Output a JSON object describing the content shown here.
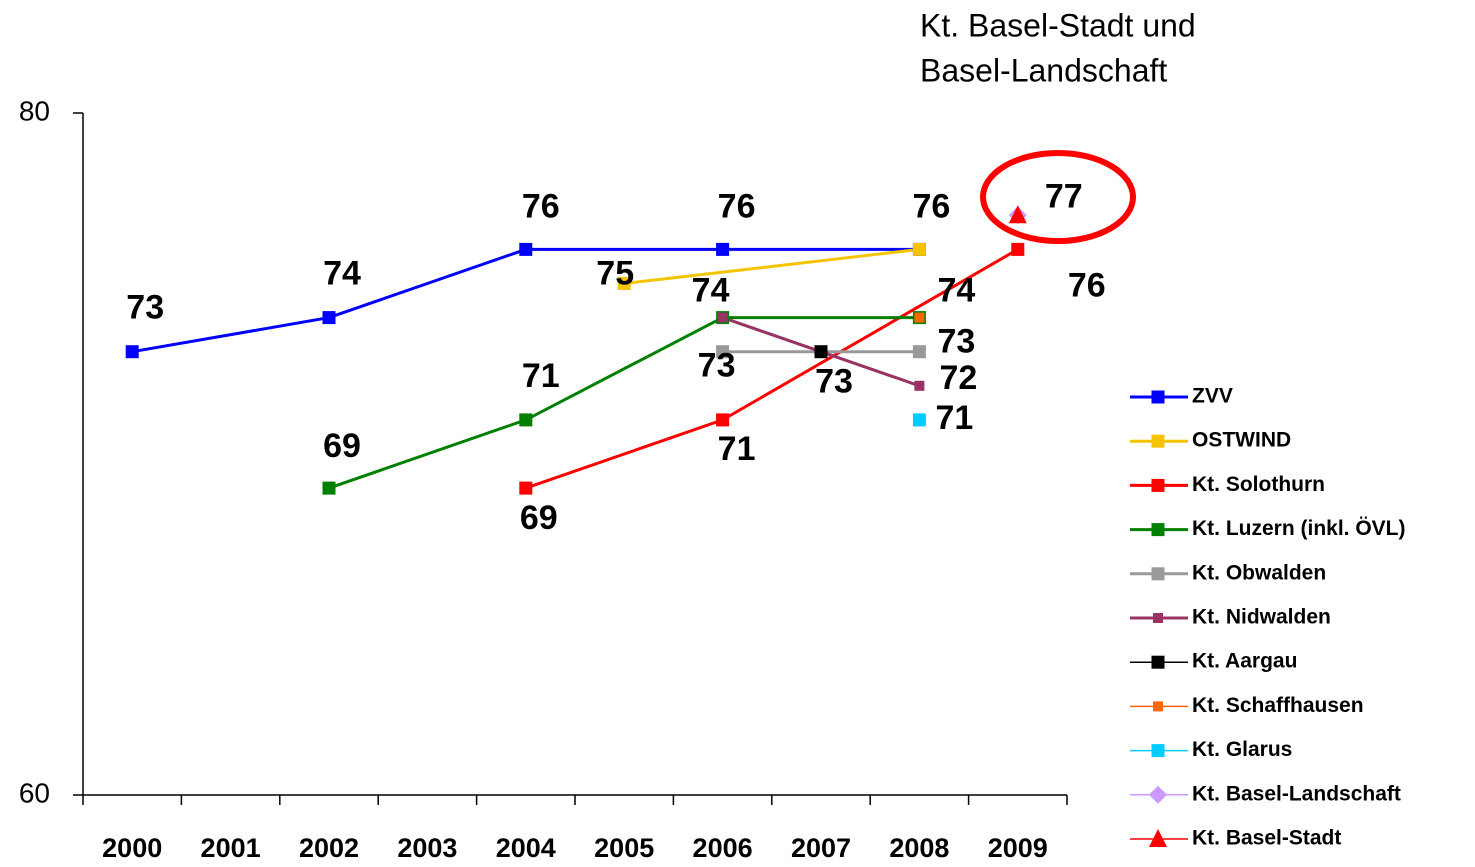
{
  "chart_data": {
    "type": "line",
    "annotation": [
      "Kt. Basel-Stadt und",
      "Basel-Landschaft"
    ],
    "categories": [
      "2000",
      "2001",
      "2002",
      "2003",
      "2004",
      "2005",
      "2006",
      "2007",
      "2008",
      "2009"
    ],
    "ylim": [
      60,
      80
    ],
    "yticks": [
      60,
      80
    ],
    "series": [
      {
        "name": "ZVV",
        "color": "#0000ff",
        "marker": "square",
        "x": [
          "2000",
          "2002",
          "2004",
          "2006",
          "2008"
        ],
        "values": [
          73,
          74,
          76,
          76,
          76
        ]
      },
      {
        "name": "OSTWIND",
        "color": "#f5c400",
        "marker": "square",
        "x": [
          "2005",
          "2008"
        ],
        "values": [
          75,
          76
        ]
      },
      {
        "name": "Kt. Solothurn",
        "color": "#ff0000",
        "marker": "square",
        "x": [
          "2004",
          "2006",
          "2009"
        ],
        "values": [
          69,
          71,
          76
        ]
      },
      {
        "name": "Kt. Luzern (inkl. ÖVL)",
        "color": "#008000",
        "marker": "square",
        "x": [
          "2002",
          "2004",
          "2006",
          "2008"
        ],
        "values": [
          69,
          71,
          74,
          74
        ]
      },
      {
        "name": "Kt. Obwalden",
        "color": "#999999",
        "marker": "square",
        "x": [
          "2006",
          "2008"
        ],
        "values": [
          73,
          73
        ]
      },
      {
        "name": "Kt. Nidwalden",
        "color": "#993366",
        "marker": "small-square",
        "x": [
          "2006",
          "2008"
        ],
        "values": [
          74,
          72
        ]
      },
      {
        "name": "Kt. Aargau",
        "color": "#000000",
        "marker": "square",
        "x": [
          "2007"
        ],
        "values": [
          73
        ]
      },
      {
        "name": "Kt. Schaffhausen",
        "color": "#ff6600",
        "marker": "small-square",
        "x": [
          "2008"
        ],
        "values": [
          74
        ]
      },
      {
        "name": "Kt. Glarus",
        "color": "#00ccff",
        "marker": "square",
        "x": [
          "2008"
        ],
        "values": [
          71
        ]
      },
      {
        "name": "Kt. Basel-Landschaft",
        "color": "#cc99ff",
        "marker": "diamond",
        "x": [
          "2009"
        ],
        "values": [
          77
        ]
      },
      {
        "name": "Kt. Basel-Stadt",
        "color": "#ff0000",
        "marker": "triangle",
        "x": [
          "2009"
        ],
        "values": [
          77
        ]
      }
    ]
  }
}
